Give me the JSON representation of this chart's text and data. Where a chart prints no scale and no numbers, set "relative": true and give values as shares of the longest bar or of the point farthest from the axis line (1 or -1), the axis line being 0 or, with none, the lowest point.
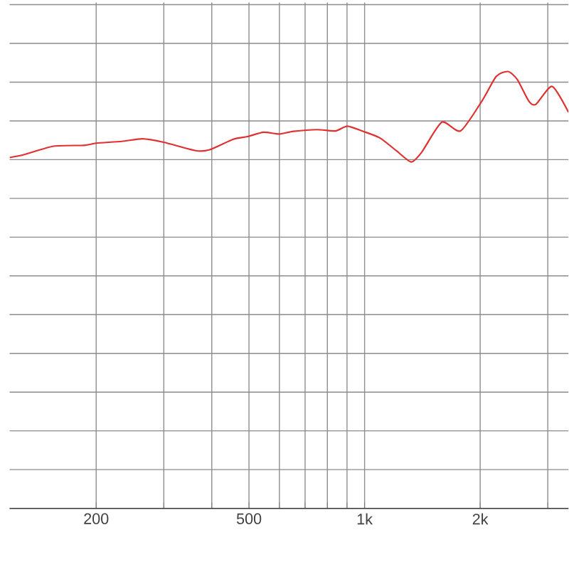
{
  "chart_data": {
    "type": "line",
    "relative": true,
    "log": "x",
    "grid": true,
    "marker": "none",
    "line_style": "solid",
    "color": "#e03030",
    "xlim": [
      119,
      3396
    ],
    "xticks": [
      200,
      {
        "value": 300,
        "label": null
      },
      {
        "value": 400,
        "label": null
      },
      500,
      {
        "value": 600,
        "label": null
      },
      {
        "value": 700,
        "label": null
      },
      {
        "value": 800,
        "label": null
      },
      {
        "value": 900,
        "label": null
      },
      {
        "value": 1000,
        "label": "1k"
      },
      {
        "value": 2000,
        "label": "2k"
      },
      {
        "value": 3000,
        "label": null
      }
    ],
    "x": [
      119,
      130,
      155,
      186,
      200,
      233,
      264,
      300,
      363,
      395,
      455,
      495,
      546,
      600,
      652,
      752,
      839,
      902,
      992,
      1096,
      1209,
      1322,
      1410,
      1589,
      1778,
      2026,
      2203,
      2363,
      2497,
      2679,
      2795,
      3079,
      3396
    ],
    "values": [
      0.803,
      0.81,
      0.829,
      0.831,
      0.836,
      0.84,
      0.846,
      0.838,
      0.819,
      0.821,
      0.845,
      0.851,
      0.861,
      0.857,
      0.863,
      0.867,
      0.864,
      0.875,
      0.863,
      0.848,
      0.819,
      0.793,
      0.816,
      0.884,
      0.864,
      0.934,
      0.989,
      1.0,
      0.982,
      0.932,
      0.925,
      0.966,
      0.907
    ]
  }
}
